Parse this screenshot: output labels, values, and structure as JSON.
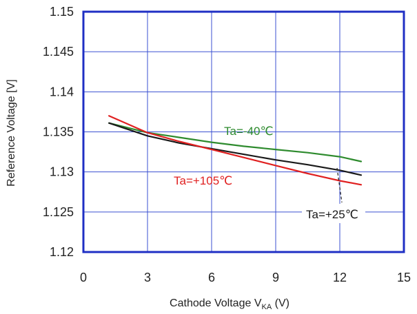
{
  "chart_data": {
    "type": "line",
    "title": "",
    "xlabel": {
      "main": "Cathode Voltage V",
      "sub": "KA",
      "unit": " (V)"
    },
    "ylabel": "Reference Voltage [V]",
    "xlim": [
      0,
      15
    ],
    "ylim": [
      1.12,
      1.15
    ],
    "xticks": [
      0,
      3,
      6,
      9,
      12,
      15
    ],
    "yticks": [
      1.12,
      1.125,
      1.13,
      1.135,
      1.14,
      1.145,
      1.15
    ],
    "xtick_labels": [
      "0",
      "3",
      "6",
      "9",
      "12",
      "15"
    ],
    "ytick_labels": [
      "1.12",
      "1.125",
      "1.13",
      "1.135",
      "1.14",
      "1.145",
      "1.15"
    ],
    "grid": true,
    "series": [
      {
        "name": "Ta=-40℃",
        "color": "#2e8b2e",
        "x": [
          1.2,
          3,
          4.5,
          6,
          7.5,
          9,
          10.5,
          12,
          13
        ],
        "y": [
          1.1361,
          1.1349,
          1.1343,
          1.1337,
          1.1332,
          1.1328,
          1.1324,
          1.1319,
          1.1313
        ]
      },
      {
        "name": "Ta=+25℃",
        "color": "#1a1a1a",
        "x": [
          1.2,
          3,
          4.5,
          6,
          7.5,
          9,
          10.5,
          12,
          13
        ],
        "y": [
          1.1361,
          1.1345,
          1.1336,
          1.1329,
          1.1322,
          1.1315,
          1.1309,
          1.1302,
          1.1296
        ]
      },
      {
        "name": "Ta=+105℃",
        "color": "#e02020",
        "x": [
          1.2,
          3,
          4.5,
          6,
          7.5,
          9,
          10.5,
          12,
          13
        ],
        "y": [
          1.137,
          1.1349,
          1.1338,
          1.1328,
          1.1318,
          1.1308,
          1.1298,
          1.1289,
          1.1284
        ]
      }
    ],
    "annotations": [
      {
        "text": "Ta=-40℃",
        "color": "#2e8b2e"
      },
      {
        "text": "Ta=+105℃",
        "color": "#e02020"
      },
      {
        "text": "Ta=+25℃",
        "color": "#1a1a1a"
      }
    ],
    "colors": {
      "frame": "#1f2fc4",
      "grid": "#3a4fd0",
      "text": "#222222"
    }
  }
}
